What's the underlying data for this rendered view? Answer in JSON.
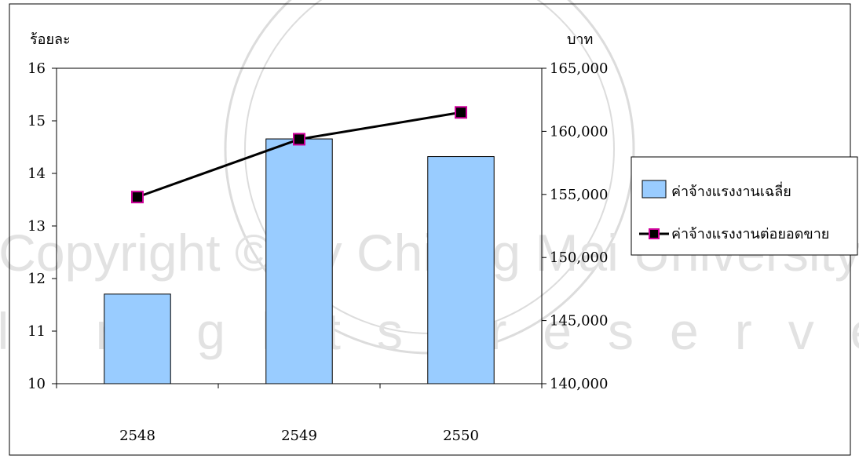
{
  "chart_data": {
    "type": "bar",
    "categories": [
      "2548",
      "2549",
      "2550"
    ],
    "left_axis": {
      "label": "ร้อยละ",
      "ylim": [
        10,
        16
      ],
      "ticks": [
        "10",
        "11",
        "12",
        "13",
        "14",
        "15",
        "16"
      ]
    },
    "right_axis": {
      "label": "บาท",
      "ylim": [
        140000,
        165000
      ],
      "ticks": [
        "140,000",
        "145,000",
        "150,000",
        "155,000",
        "160,000",
        "165,000"
      ]
    },
    "series": [
      {
        "name": "ค่าจ้างแรงงานเฉลี่ย",
        "type": "bar",
        "axis": "right",
        "values": [
          147100,
          159400,
          158000
        ],
        "color": "#99ccff"
      },
      {
        "name": "ค่าจ้างแรงงานต่อยอดขาย",
        "type": "line",
        "axis": "left",
        "values": [
          13.55,
          14.65,
          15.16
        ],
        "color": "#000000",
        "marker_color": "#cc0099"
      }
    ],
    "legend_position": "right",
    "grid": false
  },
  "watermark": {
    "lines": [
      "Copyright © by Chiang Mai University",
      "All rights reserved"
    ]
  }
}
